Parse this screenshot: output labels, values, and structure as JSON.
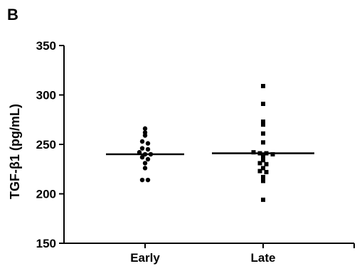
{
  "panel_label": "B",
  "chart_data": {
    "type": "scatter",
    "title": "",
    "ylabel": "TGF-β1 (pg/mL)",
    "xlabel": "",
    "ylim": [
      150,
      350
    ],
    "yticks": [
      "150",
      "200",
      "250",
      "300",
      "350"
    ],
    "yticks_values": [
      150,
      200,
      250,
      300,
      350
    ],
    "categories": [
      "Early",
      "Late"
    ],
    "grid": false,
    "legend": "none",
    "series": [
      {
        "category": "Early",
        "marker": "circle",
        "mean": 240,
        "values": [
          266,
          262,
          259,
          253,
          251,
          246,
          245,
          242,
          240,
          240,
          237,
          235,
          231,
          226,
          214,
          214
        ]
      },
      {
        "category": "Late",
        "marker": "square",
        "mean": 241,
        "values": [
          309,
          291,
          273,
          270,
          261,
          252,
          242,
          241,
          241,
          240,
          238,
          234,
          231,
          230,
          226,
          223,
          222,
          217,
          213,
          194
        ]
      }
    ],
    "colors": {
      "points": "#000000",
      "axis": "#000000",
      "mean_line": "#000000"
    }
  }
}
